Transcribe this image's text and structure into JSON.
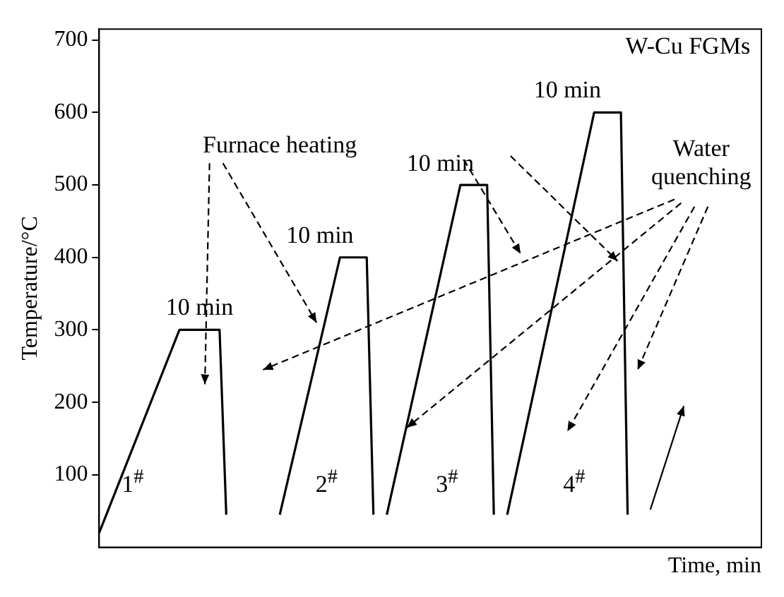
{
  "chart_data": {
    "type": "line",
    "xlabel": "Time, min",
    "ylabel": "Temperature/°C",
    "ylim": [
      0,
      715
    ],
    "yticks": [
      100,
      200,
      300,
      400,
      500,
      600,
      700
    ],
    "tick_labels": "y",
    "grid": false,
    "legend": false,
    "marker": "none",
    "line_style": "solid",
    "categories": [
      null,
      null,
      null,
      null,
      null,
      null,
      null,
      null,
      null,
      null,
      null,
      null,
      null,
      null,
      null,
      null,
      null,
      null,
      null,
      null,
      null,
      null,
      null,
      null,
      null,
      null,
      null,
      null,
      null,
      null,
      null,
      null,
      null,
      null,
      null,
      null,
      null,
      null,
      null,
      null,
      null,
      null,
      null,
      null,
      null,
      null,
      null,
      null,
      null,
      null,
      null,
      null,
      null,
      null,
      null,
      null,
      null,
      null,
      null,
      null,
      null,
      null,
      null,
      null,
      null,
      null,
      null,
      null,
      null,
      null,
      null,
      null,
      null,
      null,
      null,
      null,
      null,
      null,
      null,
      null,
      null,
      null,
      null,
      null,
      null,
      null,
      null,
      null,
      null,
      null,
      null,
      null,
      null,
      null,
      null,
      null,
      null,
      null,
      null,
      null
    ],
    "series": [
      {
        "color": "#000000",
        "values": [
          20,
          null,
          null,
          null,
          null,
          null,
          null,
          null,
          null,
          null,
          null,
          null,
          300,
          null,
          null,
          null,
          null,
          null,
          300,
          45,
          null,
          null,
          null,
          null,
          null,
          null,
          null,
          null,
          null,
          null,
          null,
          null,
          null,
          null,
          null,
          null,
          null,
          null,
          null,
          null,
          null,
          null,
          null,
          null,
          null,
          null,
          null,
          null,
          null,
          null,
          null,
          null,
          null,
          null,
          null,
          null,
          null,
          null,
          null,
          null,
          null,
          null,
          null,
          null,
          null,
          null,
          null,
          null,
          null,
          null,
          null,
          null,
          null,
          null,
          null,
          null,
          null,
          null,
          null,
          null,
          null,
          null,
          null,
          null,
          null,
          null,
          null,
          null,
          null,
          null,
          null,
          null,
          null,
          null,
          null,
          null,
          null,
          null,
          null,
          null
        ]
      },
      {
        "color": "#000000",
        "values": [
          null,
          null,
          null,
          null,
          null,
          null,
          null,
          null,
          null,
          null,
          null,
          null,
          null,
          null,
          null,
          null,
          null,
          null,
          null,
          null,
          null,
          null,
          null,
          null,
          null,
          null,
          null,
          45,
          null,
          null,
          null,
          null,
          null,
          null,
          null,
          null,
          400,
          null,
          null,
          null,
          400,
          45,
          null,
          null,
          null,
          null,
          null,
          null,
          null,
          null,
          null,
          null,
          null,
          null,
          null,
          null,
          null,
          null,
          null,
          null,
          null,
          null,
          null,
          null,
          null,
          null,
          null,
          null,
          null,
          null,
          null,
          null,
          null,
          null,
          null,
          null,
          null,
          null,
          null,
          null,
          null,
          null,
          null,
          null,
          null,
          null,
          null,
          null,
          null,
          null,
          null,
          null,
          null,
          null,
          null,
          null,
          null,
          null,
          null,
          null
        ]
      },
      {
        "color": "#000000",
        "values": [
          null,
          null,
          null,
          null,
          null,
          null,
          null,
          null,
          null,
          null,
          null,
          null,
          null,
          null,
          null,
          null,
          null,
          null,
          null,
          null,
          null,
          null,
          null,
          null,
          null,
          null,
          null,
          null,
          null,
          null,
          null,
          null,
          null,
          null,
          null,
          null,
          null,
          null,
          null,
          null,
          null,
          null,
          null,
          45,
          null,
          null,
          null,
          null,
          null,
          null,
          null,
          null,
          null,
          null,
          500,
          null,
          null,
          null,
          500,
          45,
          null,
          null,
          null,
          null,
          null,
          null,
          null,
          null,
          null,
          null,
          null,
          null,
          null,
          null,
          null,
          null,
          null,
          null,
          null,
          null,
          null,
          null,
          null,
          null,
          null,
          null,
          null,
          null,
          null,
          null,
          null,
          null,
          null,
          null,
          null,
          null,
          null,
          null,
          null,
          null
        ]
      },
      {
        "color": "#000000",
        "values": [
          null,
          null,
          null,
          null,
          null,
          null,
          null,
          null,
          null,
          null,
          null,
          null,
          null,
          null,
          null,
          null,
          null,
          null,
          null,
          null,
          null,
          null,
          null,
          null,
          null,
          null,
          null,
          null,
          null,
          null,
          null,
          null,
          null,
          null,
          null,
          null,
          null,
          null,
          null,
          null,
          null,
          null,
          null,
          null,
          null,
          null,
          null,
          null,
          null,
          null,
          null,
          null,
          null,
          null,
          null,
          null,
          null,
          null,
          null,
          null,
          null,
          45,
          null,
          null,
          null,
          null,
          null,
          null,
          null,
          null,
          null,
          null,
          null,
          null,
          600,
          null,
          null,
          null,
          600,
          45,
          null,
          null,
          null,
          null,
          null,
          null,
          null,
          null,
          null,
          null,
          null,
          null,
          null,
          null,
          null,
          null,
          null,
          null,
          null,
          null
        ]
      }
    ],
    "annotations": [
      "W-Cu FGMs",
      "Furnace heating",
      "Water quenching",
      "10 min",
      "10 min",
      "10 min",
      "10 min",
      "1$^{#}$",
      "2$^{#}$",
      "3$^{#}$",
      "4$^{#}$"
    ]
  }
}
